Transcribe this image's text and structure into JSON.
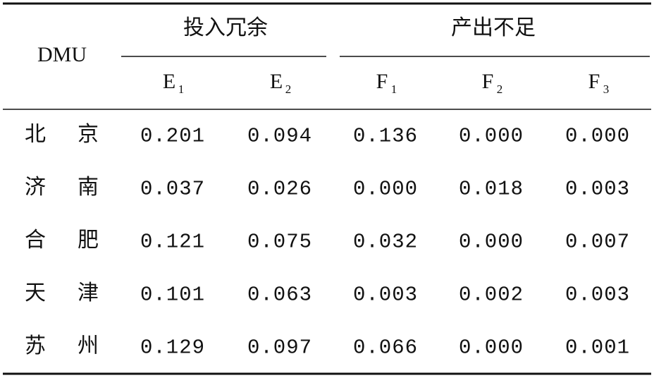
{
  "table": {
    "row_header": "DMU",
    "groups": [
      "投入冗余",
      "产出不足"
    ],
    "columns": [
      {
        "letter": "E",
        "sub": "1"
      },
      {
        "letter": "E",
        "sub": "2"
      },
      {
        "letter": "F",
        "sub": "1"
      },
      {
        "letter": "F",
        "sub": "2"
      },
      {
        "letter": "F",
        "sub": "3"
      }
    ],
    "rows": [
      {
        "name": [
          "北",
          "京"
        ],
        "cells": [
          "0.201",
          "0.094",
          "0.136",
          "0.000",
          "0.000"
        ]
      },
      {
        "name": [
          "济",
          "南"
        ],
        "cells": [
          "0.037",
          "0.026",
          "0.000",
          "0.018",
          "0.003"
        ]
      },
      {
        "name": [
          "合",
          "肥"
        ],
        "cells": [
          "0.121",
          "0.075",
          "0.032",
          "0.000",
          "0.007"
        ]
      },
      {
        "name": [
          "天",
          "津"
        ],
        "cells": [
          "0.101",
          "0.063",
          "0.003",
          "0.002",
          "0.003"
        ]
      },
      {
        "name": [
          "苏",
          "州"
        ],
        "cells": [
          "0.129",
          "0.097",
          "0.066",
          "0.000",
          "0.001"
        ]
      }
    ]
  }
}
